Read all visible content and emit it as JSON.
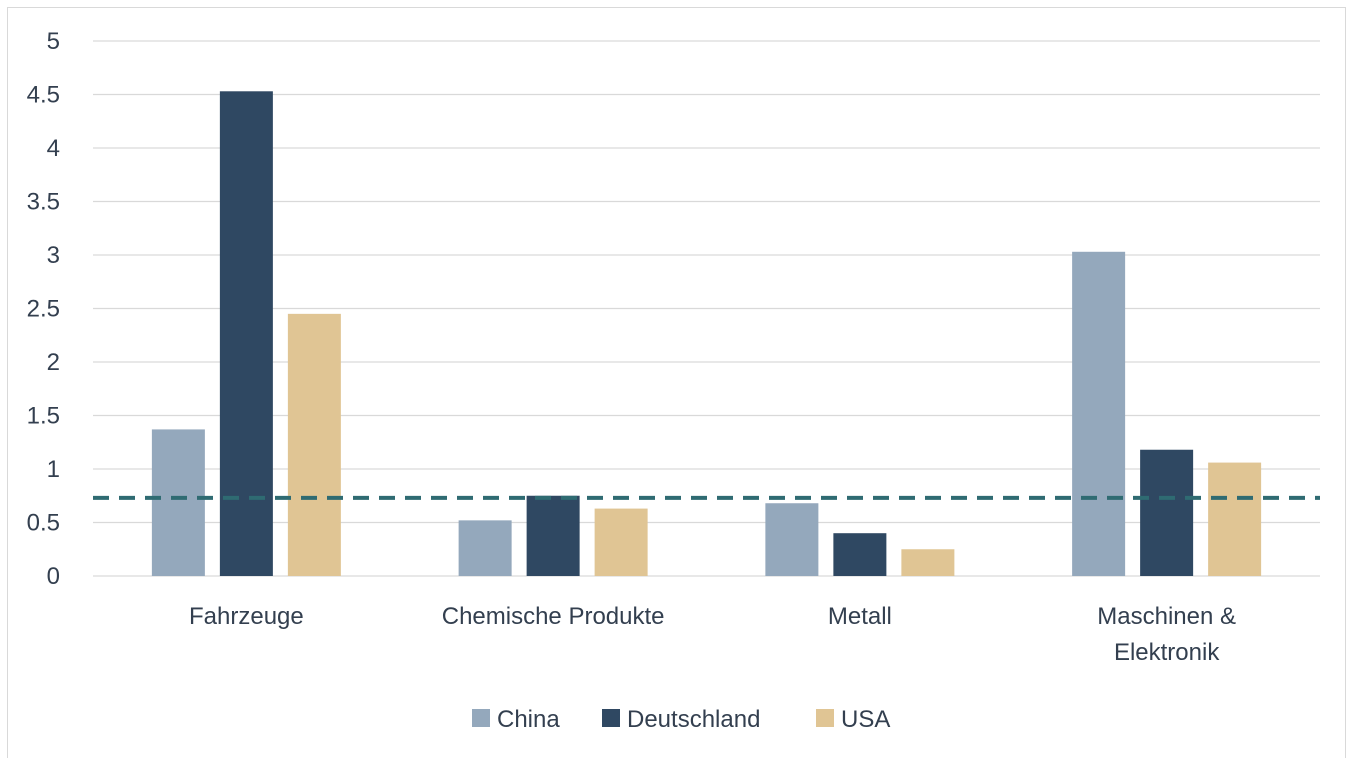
{
  "chart_data": {
    "type": "bar",
    "categories": [
      [
        "Fahrzeuge"
      ],
      [
        "Chemische Produkte"
      ],
      [
        "Metall"
      ],
      [
        "Maschinen &",
        "Elektronik"
      ]
    ],
    "series": [
      {
        "name": "China",
        "color": "#94a8bc",
        "values": [
          1.37,
          0.52,
          0.68,
          3.03
        ]
      },
      {
        "name": "Deutschland",
        "color": "#2f4862",
        "values": [
          4.53,
          0.75,
          0.4,
          1.18
        ]
      },
      {
        "name": "USA",
        "color": "#e0c594",
        "values": [
          2.45,
          0.63,
          0.25,
          1.06
        ]
      }
    ],
    "yticks": [
      "0",
      "0.5",
      "1",
      "1.5",
      "2",
      "2.5",
      "3",
      "3.5",
      "4",
      "4.5",
      "5"
    ],
    "ylim": [
      0,
      5
    ],
    "reference_line": {
      "value": 0.73,
      "color": "#2f6b72",
      "style": "dashed"
    },
    "grid": true,
    "legend_position": "bottom"
  }
}
